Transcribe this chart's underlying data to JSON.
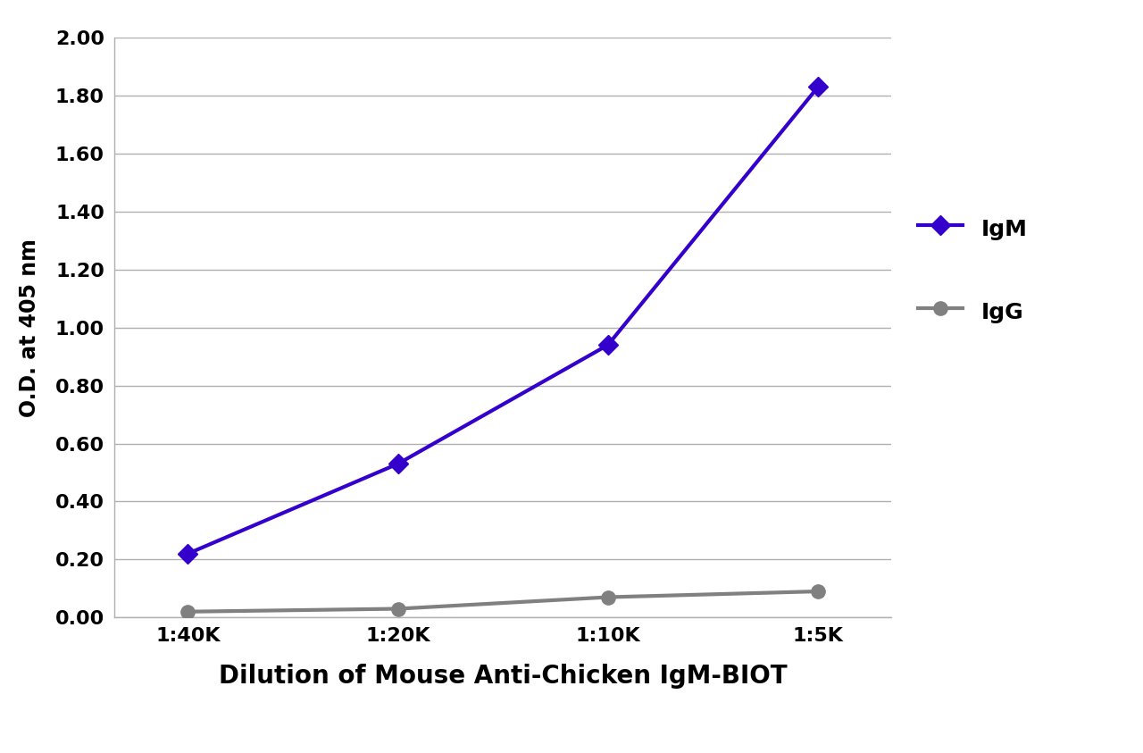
{
  "x_labels": [
    "1:40K",
    "1:20K",
    "1:10K",
    "1:5K"
  ],
  "x_values": [
    1,
    2,
    3,
    4
  ],
  "igm_values": [
    0.22,
    0.53,
    0.94,
    1.83
  ],
  "igg_values": [
    0.02,
    0.03,
    0.07,
    0.09
  ],
  "igm_color": "#3300CC",
  "igg_color": "#808080",
  "igm_label": "IgM",
  "igg_label": "IgG",
  "xlabel": "Dilution of Mouse Anti-Chicken IgM-BIOT",
  "ylabel": "O.D. at 405 nm",
  "ylim": [
    0.0,
    2.0
  ],
  "yticks": [
    0.0,
    0.2,
    0.4,
    0.6,
    0.8,
    1.0,
    1.2,
    1.4,
    1.6,
    1.8,
    2.0
  ],
  "background_color": "#ffffff",
  "grid_color": "#b0b0b0",
  "line_width": 3.0,
  "marker_size": 11,
  "xlabel_fontsize": 20,
  "ylabel_fontsize": 17,
  "tick_fontsize": 16,
  "legend_fontsize": 18
}
